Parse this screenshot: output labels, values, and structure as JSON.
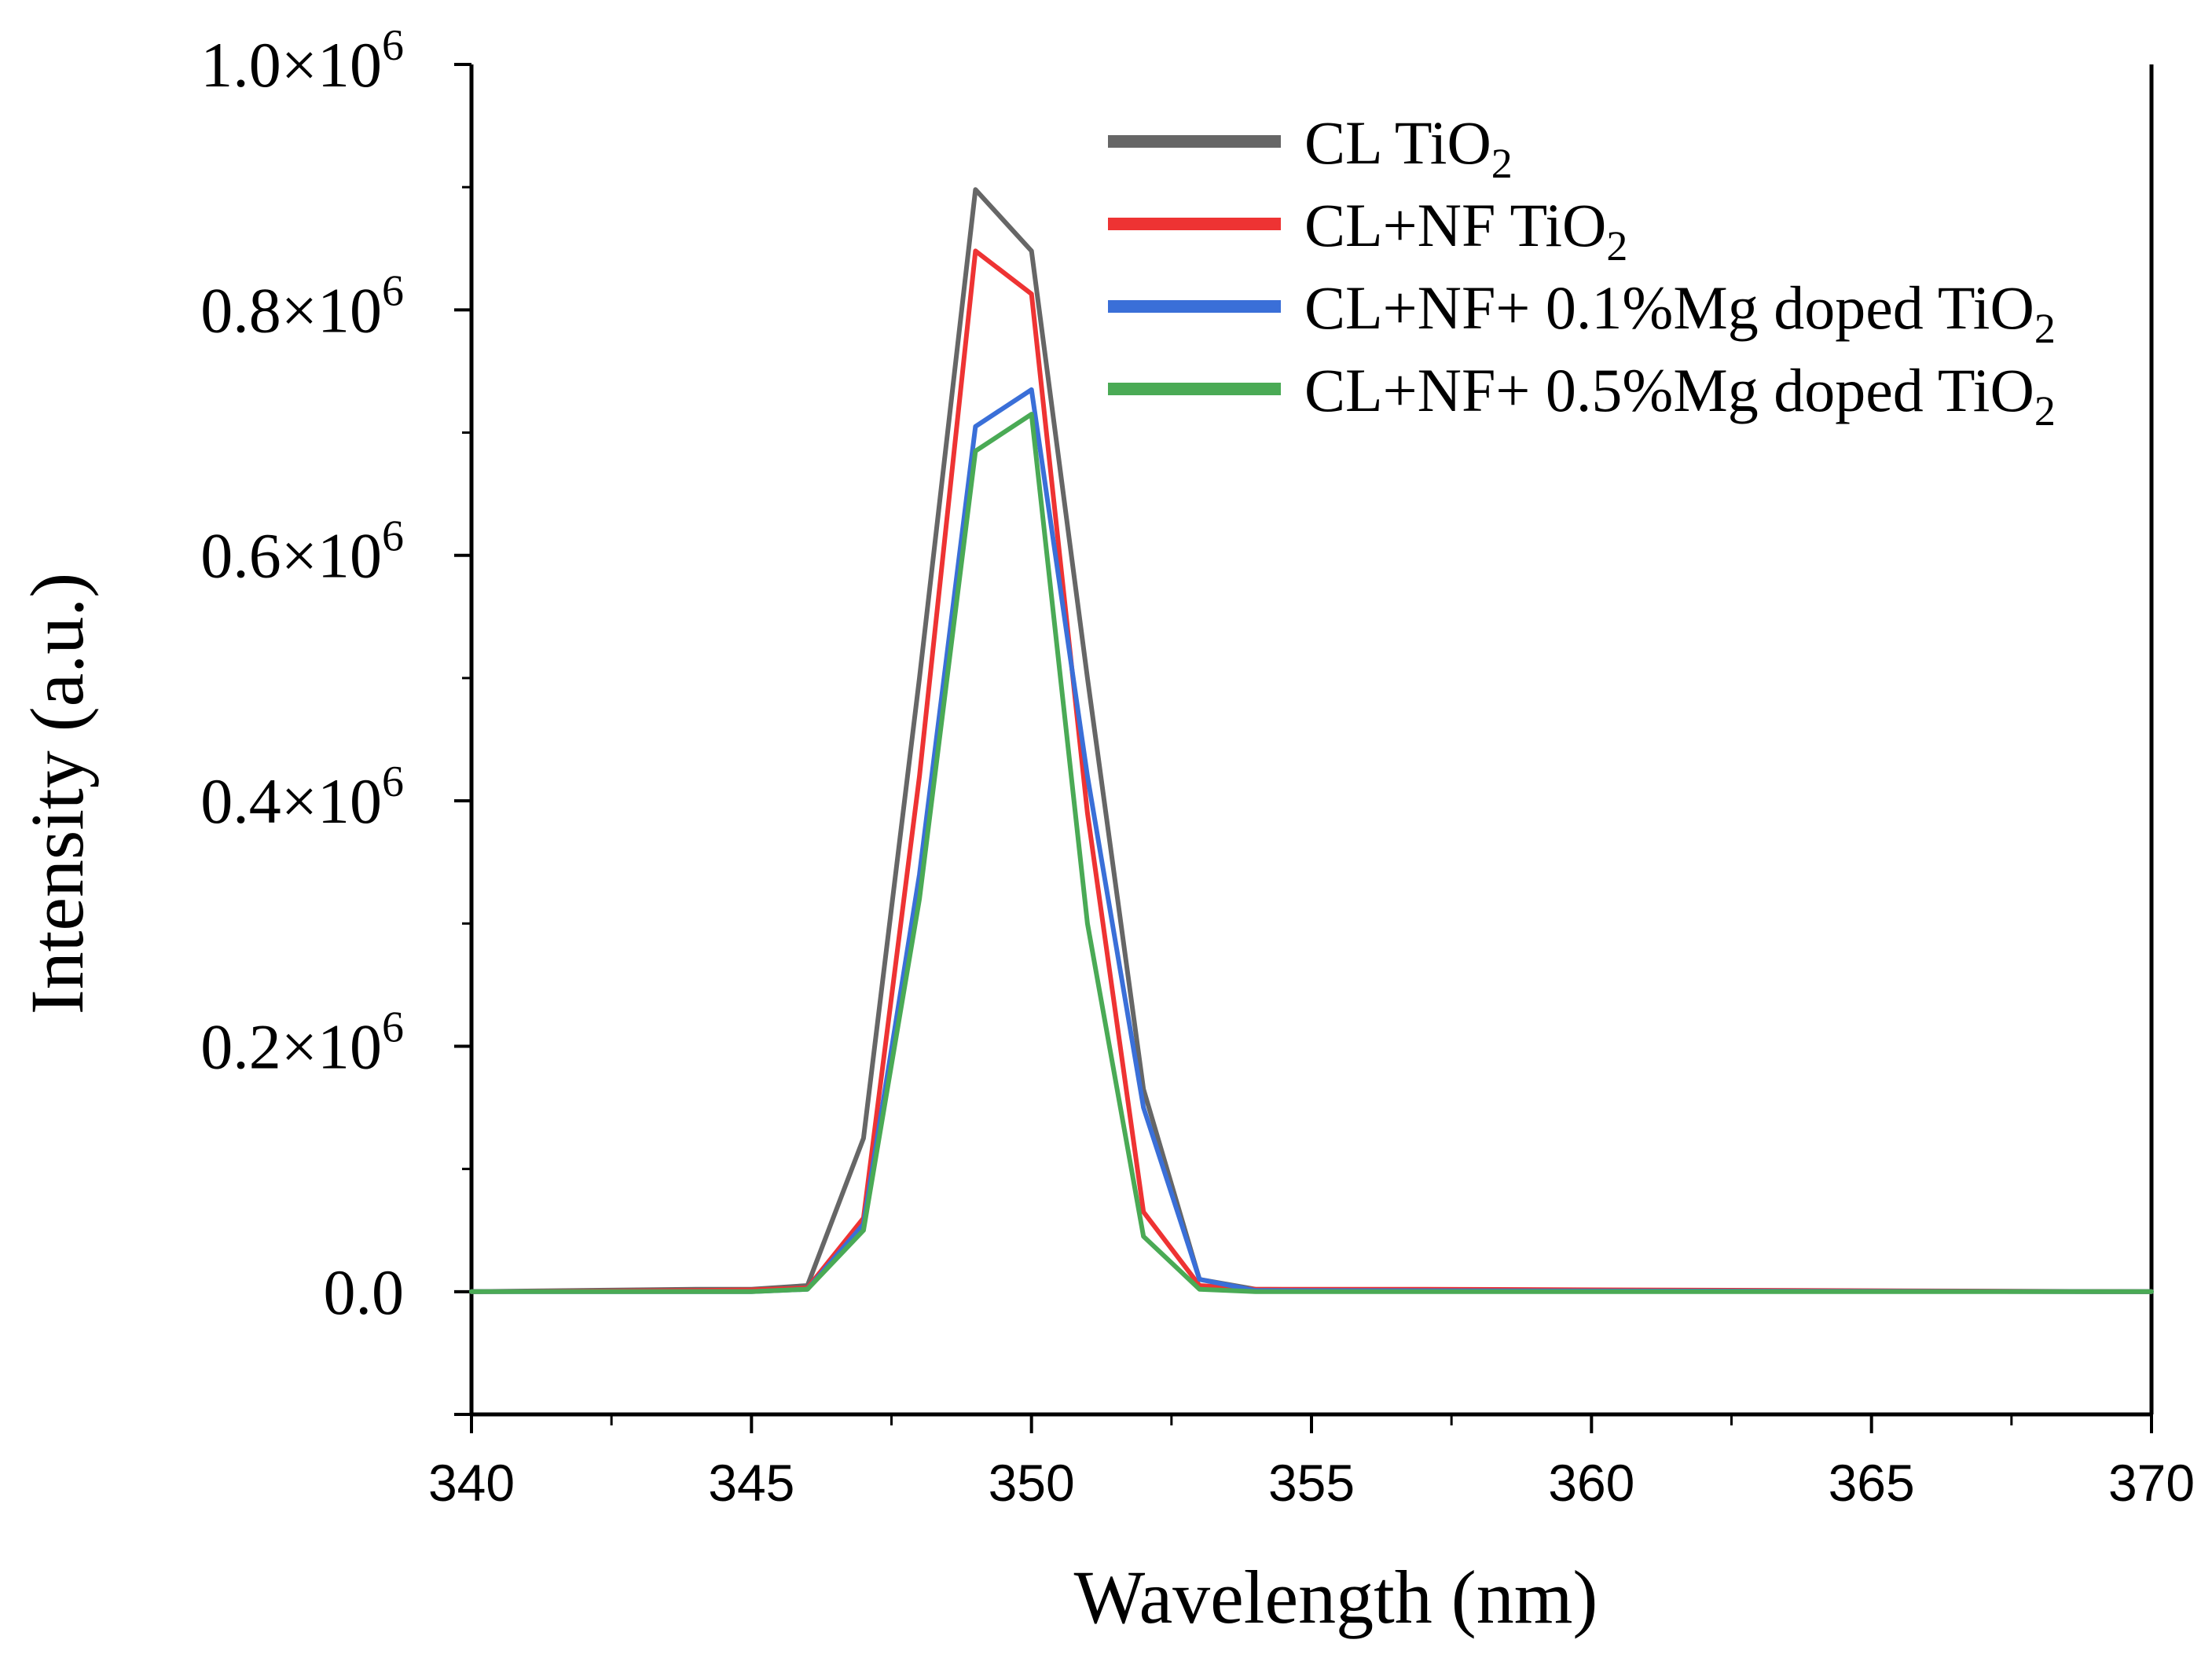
{
  "chart_data": {
    "type": "line",
    "title": "",
    "xlabel": "Wavelength (nm)",
    "ylabel": "Intensity (a.u.)",
    "xlim": [
      340,
      370
    ],
    "ylim": [
      -100000,
      1000000
    ],
    "x_ticks": [
      340,
      345,
      350,
      355,
      360,
      365,
      370
    ],
    "x_tick_labels": [
      "340",
      "345",
      "350",
      "355",
      "360",
      "365",
      "370"
    ],
    "y_ticks": [
      0,
      200000,
      400000,
      600000,
      800000,
      1000000
    ],
    "y_tick_labels": [
      {
        "mantissa": "0.0",
        "exponent": ""
      },
      {
        "mantissa": "0.2×10",
        "exponent": "6"
      },
      {
        "mantissa": "0.4×10",
        "exponent": "6"
      },
      {
        "mantissa": "0.6×10",
        "exponent": "6"
      },
      {
        "mantissa": "0.8×10",
        "exponent": "6"
      },
      {
        "mantissa": "1.0×10",
        "exponent": "6"
      }
    ],
    "grid": false,
    "legend_position": "top-right",
    "series": [
      {
        "name": "CL TiO2",
        "label_main": "CL TiO",
        "label_sub": "2",
        "color": "#666666",
        "x": [
          340,
          344,
          345,
          346,
          347,
          348,
          349,
          350,
          351,
          352,
          353,
          354,
          357,
          370
        ],
        "y": [
          0,
          2000,
          2000,
          5000,
          125000,
          500000,
          898000,
          848000,
          500000,
          165000,
          10000,
          2000,
          1000,
          0
        ]
      },
      {
        "name": "CL+NF TiO2",
        "label_main": "CL+NF TiO",
        "label_sub": "2",
        "color": "#ee3333",
        "x": [
          340,
          344,
          345,
          346,
          347,
          348,
          349,
          350,
          351,
          352,
          353,
          354,
          357,
          370
        ],
        "y": [
          0,
          1000,
          1500,
          3000,
          60000,
          420000,
          848000,
          813000,
          390000,
          65000,
          5000,
          2000,
          2000,
          0
        ]
      },
      {
        "name": "CL+NF+ 0.1%Mg doped TiO2",
        "label_main": "CL+NF+ 0.1%Mg doped TiO",
        "label_sub": "2",
        "color": "#3a6fd8",
        "x": [
          340,
          345,
          346,
          347,
          348,
          349,
          350,
          351,
          352,
          353,
          354,
          370
        ],
        "y": [
          0,
          0,
          2000,
          55000,
          340000,
          705000,
          735000,
          420000,
          150000,
          10000,
          1000,
          0
        ]
      },
      {
        "name": "CL+NF+ 0.5%Mg doped TiO2",
        "label_main": "CL+NF+ 0.5%Mg doped TiO",
        "label_sub": "2",
        "color": "#4aaa55",
        "x": [
          340,
          345,
          346,
          347,
          348,
          349,
          350,
          351,
          352,
          353,
          354,
          370
        ],
        "y": [
          0,
          0,
          2000,
          50000,
          320000,
          685000,
          715000,
          300000,
          45000,
          2000,
          0,
          0
        ]
      }
    ]
  }
}
